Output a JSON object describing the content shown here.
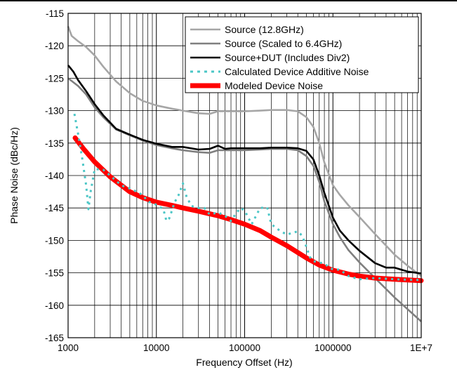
{
  "chart_data": {
    "type": "line",
    "title": "",
    "xlabel": "Frequency Offset (Hz)",
    "ylabel": "Phase Noise (dBc/Hz)",
    "xscale": "log",
    "xlim": [
      1000,
      10000000
    ],
    "ylim": [
      -165,
      -115
    ],
    "grid": true,
    "legend_position": "top-right",
    "x_tick_labels": [
      "1000",
      "10000",
      "100000",
      "1000000",
      "1E+7"
    ],
    "y_tick_labels": [
      "-115",
      "-120",
      "-125",
      "-130",
      "-135",
      "-140",
      "-145",
      "-150",
      "-155",
      "-160",
      "-165"
    ],
    "series": [
      {
        "name": "Source (12.8GHz)",
        "color": "#a6a6a6",
        "style": "solid",
        "x": [
          1000,
          1100,
          1300,
          1600,
          2000,
          2500,
          3500,
          5000,
          7000,
          10000,
          15000,
          20000,
          30000,
          40000,
          50000,
          70000,
          100000,
          150000,
          200000,
          300000,
          400000,
          500000,
          600000,
          700000,
          800000,
          1000000,
          1200000,
          1500000,
          2000000,
          3000000,
          5000000,
          7000000,
          10000000
        ],
        "y": [
          -117,
          -118.5,
          -119.3,
          -120.2,
          -121.5,
          -123.2,
          -125.5,
          -127.3,
          -128.5,
          -129.2,
          -129.7,
          -130.0,
          -130.4,
          -130.5,
          -130.1,
          -130.1,
          -130.1,
          -130.0,
          -129.9,
          -129.9,
          -130.1,
          -131.0,
          -132.5,
          -135,
          -138,
          -141.5,
          -143,
          -144.6,
          -146.4,
          -149,
          -152.2,
          -153.9,
          -155.5
        ]
      },
      {
        "name": "Source (Scaled to 6.4GHz)",
        "color": "#7f7f7f",
        "style": "solid",
        "x": [
          1000,
          1300,
          1600,
          2000,
          2500,
          3500,
          5000,
          7000,
          10000,
          15000,
          20000,
          30000,
          40000,
          50000,
          70000,
          100000,
          150000,
          200000,
          300000,
          400000,
          500000,
          600000,
          700000,
          800000,
          1000000,
          1200000,
          1500000,
          2000000,
          3000000,
          5000000,
          7000000,
          10000000
        ],
        "y": [
          -125,
          -126.2,
          -127.5,
          -129.5,
          -131,
          -132.9,
          -133.8,
          -134.6,
          -135.3,
          -135.8,
          -136.1,
          -136.4,
          -136.5,
          -136.1,
          -136.1,
          -136.1,
          -136.0,
          -135.9,
          -135.9,
          -136.1,
          -137.0,
          -138.5,
          -141,
          -144,
          -147.5,
          -149.5,
          -151.5,
          -153.4,
          -155.8,
          -158.8,
          -160.6,
          -162.5
        ]
      },
      {
        "name": "Source+DUT (Includes Div2)",
        "color": "#000000",
        "style": "solid",
        "x": [
          1000,
          1150,
          1300,
          1600,
          2000,
          2500,
          3500,
          5000,
          7000,
          10000,
          15000,
          20000,
          30000,
          40000,
          50000,
          60000,
          70000,
          100000,
          150000,
          200000,
          300000,
          400000,
          500000,
          600000,
          700000,
          800000,
          1000000,
          1200000,
          1500000,
          2000000,
          3000000,
          4000000,
          5000000,
          7000000,
          10000000
        ],
        "y": [
          -123,
          -124,
          -125.3,
          -127,
          -129,
          -130.7,
          -132.8,
          -133.7,
          -134.5,
          -135.1,
          -135.6,
          -135.6,
          -136.0,
          -135.9,
          -135.4,
          -135.9,
          -135.8,
          -135.8,
          -135.8,
          -135.7,
          -135.7,
          -135.8,
          -136.2,
          -137.5,
          -140,
          -142.7,
          -146.5,
          -148.5,
          -150,
          -151.6,
          -153.5,
          -154.2,
          -154.2,
          -154.8,
          -155.1
        ]
      },
      {
        "name": "Calculated Device Additive Noise",
        "color": "#4bc6c6",
        "style": "dotted",
        "x": [
          1180,
          1300,
          1450,
          1600,
          1700,
          1800,
          2000,
          2500,
          3000,
          4000,
          5000,
          6000,
          7000,
          8000,
          10000,
          12000,
          13000,
          14000,
          15000,
          16000,
          18000,
          20000,
          22000,
          25000,
          30000,
          35000,
          40000,
          50000,
          60000,
          70000,
          80000,
          90000,
          100000,
          120000,
          150000,
          180000,
          200000,
          250000,
          300000,
          400000,
          450000,
          500000,
          550000,
          600000,
          700000,
          800000,
          1000000,
          1200000,
          1500000,
          2000000,
          3000000,
          5000000,
          10000000
        ],
        "y": [
          -130.5,
          -133.6,
          -137.5,
          -141.5,
          -145.2,
          -142.5,
          -139,
          -139.1,
          -140,
          -141.5,
          -142,
          -142.5,
          -143,
          -144,
          -144.5,
          -145.2,
          -147,
          -146.6,
          -145.4,
          -144.2,
          -142.9,
          -141.2,
          -143.3,
          -144.7,
          -145,
          -145,
          -146,
          -145.7,
          -146.2,
          -147,
          -145.8,
          -145,
          -145.4,
          -147.5,
          -145,
          -144.9,
          -147.5,
          -148.5,
          -149.1,
          -148.6,
          -149.3,
          -151,
          -152.6,
          -153.2,
          -153.4,
          -153.6,
          -154.5,
          -154.5,
          -155.5,
          -156,
          -155.8,
          -156,
          -156.1
        ]
      },
      {
        "name": "Modeled Device Noise",
        "color": "#ff0000",
        "style": "thick",
        "x": [
          1200,
          1500,
          2000,
          3000,
          5000,
          7000,
          10000,
          15000,
          20000,
          30000,
          50000,
          70000,
          100000,
          150000,
          200000,
          300000,
          500000,
          700000,
          1000000,
          1500000,
          2000000,
          3000000,
          5000000,
          7000000,
          10000000
        ],
        "y": [
          -134.2,
          -135.9,
          -137.9,
          -140.2,
          -142.5,
          -143.4,
          -144.1,
          -144.6,
          -145,
          -145.5,
          -146.2,
          -146.8,
          -147.5,
          -148.5,
          -149.5,
          -150.8,
          -152.7,
          -153.8,
          -154.6,
          -155.2,
          -155.5,
          -155.8,
          -156.0,
          -156.1,
          -156.2
        ]
      }
    ]
  }
}
